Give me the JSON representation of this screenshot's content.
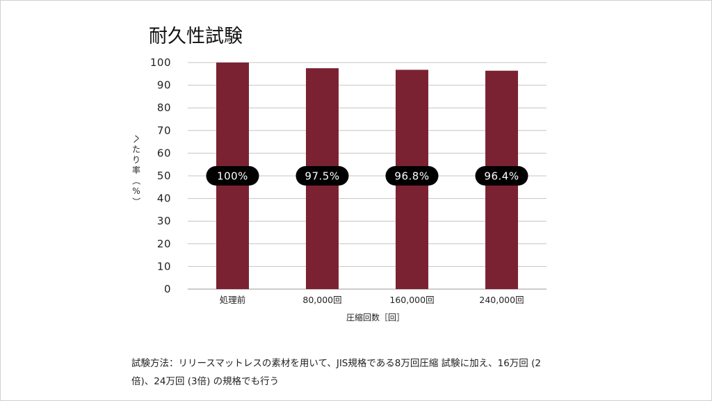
{
  "chart_data": {
    "type": "bar",
    "title": "耐久性試験",
    "categories": [
      "処理前",
      "80,000回",
      "160,000回",
      "240,000回"
    ],
    "values": [
      100,
      97.5,
      96.8,
      96.4
    ],
    "data_labels": [
      "100%",
      "97.5%",
      "96.8%",
      "96.4%"
    ],
    "xlabel": "圧縮回数［回］",
    "ylabel": "へたり率（%）",
    "ylim": [
      0,
      100
    ],
    "yticks": [
      0,
      10,
      20,
      30,
      40,
      50,
      60,
      70,
      80,
      90,
      100
    ],
    "grid": true,
    "bar_color": "#7b2232",
    "label_bg_color": "#000000"
  },
  "note": {
    "text": "試験方法：リリースマットレスの素材を用いて、JIS規格である8万回圧縮 試験に加え、16万回 (2倍)、24万回 (3倍) の規格でも行う"
  }
}
